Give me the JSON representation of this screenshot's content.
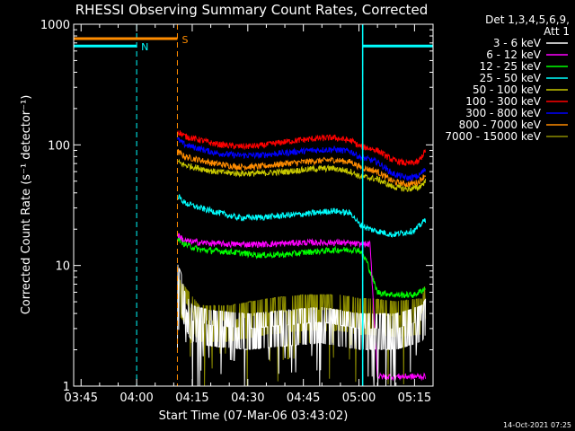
{
  "chart_data": {
    "type": "line",
    "title": "RHESSI Observing Summary Count Rates, Corrected",
    "xlabel": "Start Time (07-Mar-06 03:43:02)",
    "ylabel": "Corrected Count Rate (s⁻¹ detector⁻¹)",
    "y_scale": "log",
    "ylim": [
      1,
      1000
    ],
    "xlim_minutes": [
      -2,
      95
    ],
    "x_ticks": [
      {
        "m": 0,
        "label": "03:45"
      },
      {
        "m": 15,
        "label": "04:00"
      },
      {
        "m": 30,
        "label": "04:15"
      },
      {
        "m": 45,
        "label": "04:30"
      },
      {
        "m": 60,
        "label": "04:45"
      },
      {
        "m": 75,
        "label": "05:00"
      },
      {
        "m": 90,
        "label": "05:15"
      }
    ],
    "y_ticks": [
      {
        "v": 1,
        "label": "1"
      },
      {
        "v": 10,
        "label": "10"
      },
      {
        "v": 100,
        "label": "100"
      },
      {
        "v": 1000,
        "label": "1000"
      }
    ],
    "legend": {
      "header": "Det 1,3,4,5,6,9,",
      "subheader": "Att 1",
      "position": "right"
    },
    "markers": [
      {
        "label": "N",
        "kind": "night",
        "start": -2,
        "end": 15,
        "color": "#00ffff"
      },
      {
        "label": "S",
        "kind": "saa",
        "start": -2,
        "end": 26,
        "color": "#ff8c00"
      },
      {
        "label": "",
        "kind": "night",
        "start": 76,
        "end": 95,
        "color": "#00ffff"
      }
    ],
    "series": [
      {
        "name": "3 - 6 keV",
        "color": "#ffffff",
        "style": "noisy",
        "values": [
          [
            26,
            7.8
          ],
          [
            27,
            6.5
          ],
          [
            28,
            4.5
          ],
          [
            30,
            3.5
          ],
          [
            35,
            3.2
          ],
          [
            45,
            3
          ],
          [
            55,
            3.2
          ],
          [
            65,
            3.4
          ],
          [
            75,
            3
          ],
          [
            78,
            3
          ],
          [
            85,
            3
          ],
          [
            92,
            3.5
          ],
          [
            93,
            4
          ]
        ]
      },
      {
        "name": "6 - 12 keV",
        "color": "#ff00ff",
        "values": [
          [
            26,
            18
          ],
          [
            28,
            16
          ],
          [
            32,
            15.5
          ],
          [
            40,
            15
          ],
          [
            50,
            15
          ],
          [
            60,
            15.5
          ],
          [
            70,
            15.5
          ],
          [
            75,
            15
          ],
          [
            78,
            15
          ],
          [
            80,
            1.2
          ],
          [
            93,
            1.2
          ]
        ]
      },
      {
        "name": "12 - 25 keV",
        "color": "#00ff00",
        "values": [
          [
            26,
            17
          ],
          [
            28,
            15
          ],
          [
            32,
            13.5
          ],
          [
            40,
            13
          ],
          [
            48,
            12.2
          ],
          [
            55,
            12.3
          ],
          [
            62,
            13
          ],
          [
            70,
            13.5
          ],
          [
            75,
            13.5
          ],
          [
            77,
            11
          ],
          [
            80,
            6
          ],
          [
            85,
            5.7
          ],
          [
            90,
            5.7
          ],
          [
            93,
            6.5
          ]
        ]
      },
      {
        "name": "25 - 50 keV",
        "color": "#00ffff",
        "values": [
          [
            26,
            38
          ],
          [
            28,
            33
          ],
          [
            32,
            30
          ],
          [
            36,
            28
          ],
          [
            42,
            25
          ],
          [
            48,
            25
          ],
          [
            55,
            26
          ],
          [
            62,
            27
          ],
          [
            68,
            28.5
          ],
          [
            73,
            27
          ],
          [
            75,
            22
          ],
          [
            78,
            20
          ],
          [
            84,
            18
          ],
          [
            90,
            19.5
          ],
          [
            93,
            24
          ]
        ]
      },
      {
        "name": "50 - 100 keV",
        "color": "#c8c800",
        "values": [
          [
            26,
            72
          ],
          [
            28,
            68
          ],
          [
            32,
            64
          ],
          [
            36,
            60
          ],
          [
            42,
            58
          ],
          [
            48,
            58
          ],
          [
            55,
            60
          ],
          [
            62,
            63
          ],
          [
            68,
            64
          ],
          [
            73,
            60
          ],
          [
            75,
            55
          ],
          [
            80,
            52
          ],
          [
            84,
            45
          ],
          [
            88,
            43
          ],
          [
            91,
            44
          ],
          [
            93,
            50
          ]
        ]
      },
      {
        "name": "100 - 300 keV",
        "color": "#ff0000",
        "values": [
          [
            26,
            130
          ],
          [
            28,
            118
          ],
          [
            32,
            110
          ],
          [
            36,
            102
          ],
          [
            42,
            97
          ],
          [
            48,
            98
          ],
          [
            55,
            106
          ],
          [
            62,
            112
          ],
          [
            68,
            115
          ],
          [
            73,
            108
          ],
          [
            75,
            98
          ],
          [
            80,
            90
          ],
          [
            84,
            75
          ],
          [
            88,
            70
          ],
          [
            91,
            72
          ],
          [
            93,
            90
          ]
        ]
      },
      {
        "name": "300 - 800 keV",
        "color": "#0000ff",
        "values": [
          [
            26,
            112
          ],
          [
            28,
            100
          ],
          [
            32,
            93
          ],
          [
            36,
            86
          ],
          [
            42,
            82
          ],
          [
            48,
            82
          ],
          [
            55,
            86
          ],
          [
            62,
            90
          ],
          [
            68,
            92
          ],
          [
            73,
            88
          ],
          [
            75,
            80
          ],
          [
            80,
            72
          ],
          [
            84,
            58
          ],
          [
            88,
            53
          ],
          [
            91,
            55
          ],
          [
            93,
            63
          ]
        ]
      },
      {
        "name": "800 - 7000 keV",
        "color": "#ff8c00",
        "values": [
          [
            26,
            88
          ],
          [
            28,
            80
          ],
          [
            32,
            75
          ],
          [
            36,
            70
          ],
          [
            42,
            66
          ],
          [
            48,
            66
          ],
          [
            55,
            70
          ],
          [
            62,
            73
          ],
          [
            68,
            75
          ],
          [
            73,
            72
          ],
          [
            75,
            66
          ],
          [
            80,
            60
          ],
          [
            84,
            50
          ],
          [
            88,
            47
          ],
          [
            91,
            49
          ],
          [
            93,
            57
          ]
        ]
      },
      {
        "name": "7000 - 15000 keV",
        "color": "#8c8c00",
        "style": "noisy",
        "values": [
          [
            26,
            6
          ],
          [
            28,
            5
          ],
          [
            32,
            3.5
          ],
          [
            40,
            3.5
          ],
          [
            50,
            4
          ],
          [
            60,
            4.3
          ],
          [
            70,
            4.3
          ],
          [
            75,
            4
          ],
          [
            78,
            4
          ],
          [
            85,
            3.8
          ],
          [
            92,
            4
          ],
          [
            93,
            5.5
          ]
        ]
      }
    ]
  },
  "footer": {
    "timestamp": "14-Oct-2021 07:25"
  }
}
